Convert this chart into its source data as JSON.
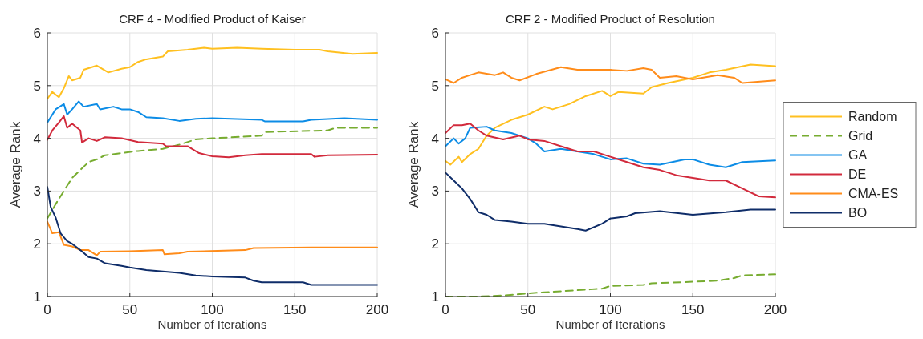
{
  "chart_data": [
    {
      "type": "line",
      "title": "CRF 4 - Modified Product of Kaiser",
      "xlabel": "Number of Iterations",
      "ylabel": "Average Rank",
      "xlim": [
        0,
        200
      ],
      "xticks": [
        0,
        50,
        100,
        150,
        200
      ],
      "ylim": [
        1,
        6
      ],
      "yticks": [
        1,
        2,
        3,
        4,
        5,
        6
      ],
      "grid": true,
      "legend": false,
      "marker": "none",
      "series": [
        {
          "color": "#ffc020",
          "x": [
            0,
            3,
            7,
            10,
            13,
            15,
            20,
            22,
            30,
            37,
            45,
            50,
            55,
            60,
            70,
            73,
            85,
            95,
            100,
            115,
            130,
            150,
            165,
            170,
            185,
            200
          ],
          "values": [
            4.75,
            4.88,
            4.78,
            4.95,
            5.18,
            5.1,
            5.15,
            5.3,
            5.38,
            5.25,
            5.32,
            5.35,
            5.45,
            5.5,
            5.55,
            5.65,
            5.68,
            5.72,
            5.7,
            5.72,
            5.7,
            5.68,
            5.68,
            5.65,
            5.6,
            5.62
          ]
        },
        {
          "color": "#77ac30",
          "line_style": "dashed",
          "x": [
            0,
            5,
            10,
            15,
            20,
            25,
            30,
            35,
            45,
            55,
            70,
            80,
            90,
            100,
            130,
            132,
            170,
            175,
            200
          ],
          "values": [
            2.48,
            2.75,
            3.0,
            3.25,
            3.4,
            3.55,
            3.6,
            3.68,
            3.72,
            3.76,
            3.8,
            3.88,
            3.98,
            4.0,
            4.05,
            4.12,
            4.15,
            4.2,
            4.2
          ]
        },
        {
          "color": "#0c8ce6",
          "x": [
            0,
            5,
            10,
            12,
            15,
            19,
            22,
            30,
            32,
            40,
            45,
            50,
            55,
            60,
            70,
            80,
            90,
            100,
            130,
            132,
            155,
            160,
            180,
            200
          ],
          "values": [
            4.3,
            4.55,
            4.65,
            4.45,
            4.55,
            4.7,
            4.6,
            4.65,
            4.55,
            4.6,
            4.55,
            4.55,
            4.5,
            4.4,
            4.38,
            4.33,
            4.37,
            4.38,
            4.35,
            4.32,
            4.32,
            4.35,
            4.38,
            4.35
          ]
        },
        {
          "color": "#d22a3c",
          "x": [
            0,
            3,
            7,
            10,
            12,
            15,
            20,
            21,
            25,
            30,
            35,
            45,
            55,
            70,
            72,
            85,
            92,
            100,
            110,
            120,
            130,
            160,
            162,
            170,
            200
          ],
          "values": [
            3.97,
            4.15,
            4.3,
            4.42,
            4.2,
            4.28,
            4.15,
            3.92,
            4.0,
            3.95,
            4.02,
            4.0,
            3.93,
            3.9,
            3.85,
            3.85,
            3.72,
            3.66,
            3.64,
            3.68,
            3.7,
            3.7,
            3.65,
            3.68,
            3.69
          ]
        },
        {
          "color": "#ff8c1a",
          "x": [
            0,
            3,
            7,
            10,
            15,
            20,
            25,
            30,
            32,
            50,
            70,
            71,
            80,
            85,
            120,
            125,
            160,
            200
          ],
          "values": [
            2.42,
            2.2,
            2.22,
            1.98,
            1.95,
            1.88,
            1.88,
            1.78,
            1.85,
            1.86,
            1.88,
            1.8,
            1.82,
            1.85,
            1.88,
            1.92,
            1.93,
            1.93
          ]
        },
        {
          "color": "#0f2d69",
          "x": [
            0,
            2,
            5,
            8,
            12,
            15,
            20,
            25,
            30,
            35,
            45,
            50,
            60,
            80,
            90,
            100,
            120,
            125,
            130,
            155,
            160,
            200
          ],
          "values": [
            3.08,
            2.7,
            2.5,
            2.2,
            2.05,
            2.0,
            1.88,
            1.75,
            1.72,
            1.63,
            1.58,
            1.55,
            1.5,
            1.45,
            1.4,
            1.38,
            1.36,
            1.3,
            1.27,
            1.27,
            1.22,
            1.22
          ]
        }
      ]
    },
    {
      "type": "line",
      "title": "CRF 2 - Modified Product of Resolution",
      "xlabel": "Number of Iterations",
      "ylabel": "Average Rank",
      "xlim": [
        0,
        200
      ],
      "xticks": [
        0,
        50,
        100,
        150,
        200
      ],
      "ylim": [
        1,
        6
      ],
      "yticks": [
        1,
        2,
        3,
        4,
        5,
        6
      ],
      "grid": true,
      "legend": "right",
      "marker": "none",
      "series": [
        {
          "name": "Random",
          "color": "#ffc020",
          "x": [
            0,
            3,
            8,
            10,
            15,
            20,
            25,
            30,
            40,
            50,
            60,
            65,
            75,
            85,
            95,
            100,
            105,
            120,
            125,
            135,
            150,
            160,
            170,
            185,
            200
          ],
          "values": [
            3.57,
            3.5,
            3.65,
            3.55,
            3.7,
            3.8,
            4.05,
            4.2,
            4.35,
            4.45,
            4.6,
            4.55,
            4.65,
            4.8,
            4.9,
            4.8,
            4.88,
            4.85,
            4.97,
            5.05,
            5.15,
            5.25,
            5.3,
            5.4,
            5.37
          ]
        },
        {
          "name": "Grid",
          "color": "#77ac30",
          "line_style": "dashed",
          "x": [
            0,
            20,
            35,
            50,
            60,
            70,
            85,
            95,
            100,
            120,
            125,
            150,
            165,
            175,
            180,
            200
          ],
          "values": [
            1.0,
            1.0,
            1.02,
            1.06,
            1.08,
            1.1,
            1.13,
            1.15,
            1.2,
            1.22,
            1.25,
            1.28,
            1.3,
            1.35,
            1.4,
            1.42
          ]
        },
        {
          "name": "GA",
          "color": "#0c8ce6",
          "x": [
            0,
            5,
            8,
            12,
            15,
            25,
            30,
            40,
            50,
            55,
            60,
            70,
            80,
            90,
            100,
            110,
            120,
            130,
            145,
            150,
            160,
            170,
            180,
            200
          ],
          "values": [
            3.85,
            4.0,
            3.9,
            4.0,
            4.2,
            4.22,
            4.15,
            4.1,
            4.0,
            3.9,
            3.75,
            3.8,
            3.75,
            3.7,
            3.6,
            3.62,
            3.52,
            3.5,
            3.6,
            3.6,
            3.5,
            3.45,
            3.55,
            3.58
          ]
        },
        {
          "name": "DE",
          "color": "#d22a3c",
          "x": [
            0,
            5,
            10,
            15,
            20,
            25,
            35,
            45,
            50,
            60,
            70,
            80,
            90,
            100,
            110,
            120,
            130,
            140,
            150,
            160,
            170,
            180,
            190,
            200
          ],
          "values": [
            4.1,
            4.25,
            4.25,
            4.28,
            4.15,
            4.05,
            3.98,
            4.05,
            3.98,
            3.95,
            3.85,
            3.75,
            3.75,
            3.65,
            3.55,
            3.45,
            3.4,
            3.3,
            3.25,
            3.2,
            3.2,
            3.05,
            2.9,
            2.88
          ]
        },
        {
          "name": "CMA-ES",
          "color": "#ff8c1a",
          "x": [
            0,
            5,
            10,
            15,
            20,
            30,
            35,
            40,
            45,
            55,
            70,
            80,
            90,
            100,
            110,
            120,
            125,
            130,
            140,
            150,
            165,
            175,
            180,
            200
          ],
          "values": [
            5.12,
            5.05,
            5.15,
            5.2,
            5.25,
            5.2,
            5.25,
            5.15,
            5.1,
            5.22,
            5.35,
            5.3,
            5.3,
            5.3,
            5.28,
            5.33,
            5.3,
            5.15,
            5.18,
            5.12,
            5.2,
            5.15,
            5.05,
            5.1
          ]
        },
        {
          "name": "BO",
          "color": "#0f2d69",
          "x": [
            0,
            5,
            10,
            15,
            20,
            25,
            30,
            40,
            50,
            60,
            70,
            80,
            85,
            95,
            100,
            110,
            115,
            130,
            150,
            170,
            185,
            200
          ],
          "values": [
            3.35,
            3.2,
            3.05,
            2.85,
            2.6,
            2.55,
            2.45,
            2.42,
            2.38,
            2.38,
            2.33,
            2.28,
            2.25,
            2.38,
            2.48,
            2.52,
            2.58,
            2.62,
            2.55,
            2.6,
            2.65,
            2.65
          ]
        }
      ]
    }
  ]
}
